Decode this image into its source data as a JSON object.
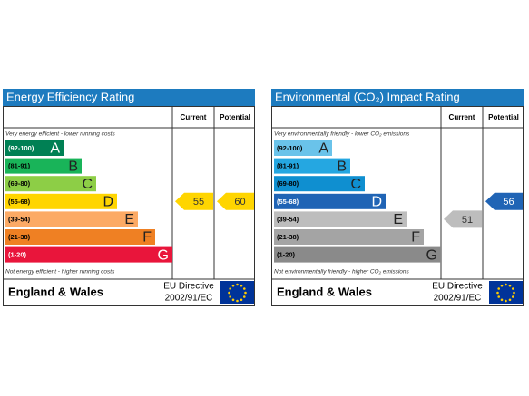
{
  "panels": [
    {
      "title": "Energy Efficiency Rating",
      "headers": [
        "Current",
        "Potential"
      ],
      "top_note": "Very energy efficient - lower running costs",
      "bottom_note": "Not energy efficient - higher running costs",
      "bands": [
        {
          "range": "(92-100)",
          "letter": "A",
          "color": "#008054"
        },
        {
          "range": "(81-91)",
          "letter": "B",
          "color": "#19b459"
        },
        {
          "range": "(69-80)",
          "letter": "C",
          "color": "#8dce46"
        },
        {
          "range": "(55-68)",
          "letter": "D",
          "color": "#ffd500"
        },
        {
          "range": "(39-54)",
          "letter": "E",
          "color": "#fcaa65"
        },
        {
          "range": "(21-38)",
          "letter": "F",
          "color": "#ef8023"
        },
        {
          "range": "(1-20)",
          "letter": "G",
          "color": "#e9153b"
        }
      ],
      "current": {
        "value": 55,
        "color": "#ffd500"
      },
      "potential": {
        "value": 60,
        "color": "#ffd500"
      },
      "footer": {
        "region": "England & Wales",
        "directive": "EU Directive",
        "code": "2002/91/EC"
      }
    },
    {
      "title": "Environmental (CO₂) Impact Rating",
      "headers": [
        "Current",
        "Potential"
      ],
      "top_note": "Very environmentally friendly - lower CO₂ emissions",
      "bottom_note": "Not environmentally friendly - higher CO₂ emissions",
      "bands": [
        {
          "range": "(92-100)",
          "letter": "A",
          "color": "#6ac3ea"
        },
        {
          "range": "(81-91)",
          "letter": "B",
          "color": "#25a7e1"
        },
        {
          "range": "(69-80)",
          "letter": "C",
          "color": "#0f8fd0"
        },
        {
          "range": "(55-68)",
          "letter": "D",
          "color": "#2064b5"
        },
        {
          "range": "(39-54)",
          "letter": "E",
          "color": "#bdbdbd"
        },
        {
          "range": "(21-38)",
          "letter": "F",
          "color": "#a4a4a4"
        },
        {
          "range": "(1-20)",
          "letter": "G",
          "color": "#8a8a8a"
        }
      ],
      "current": {
        "value": 51,
        "color": "#bdbdbd"
      },
      "potential": {
        "value": 56,
        "color": "#2064b5"
      },
      "footer": {
        "region": "England & Wales",
        "directive": "EU Directive",
        "code": "2002/91/EC"
      }
    }
  ]
}
